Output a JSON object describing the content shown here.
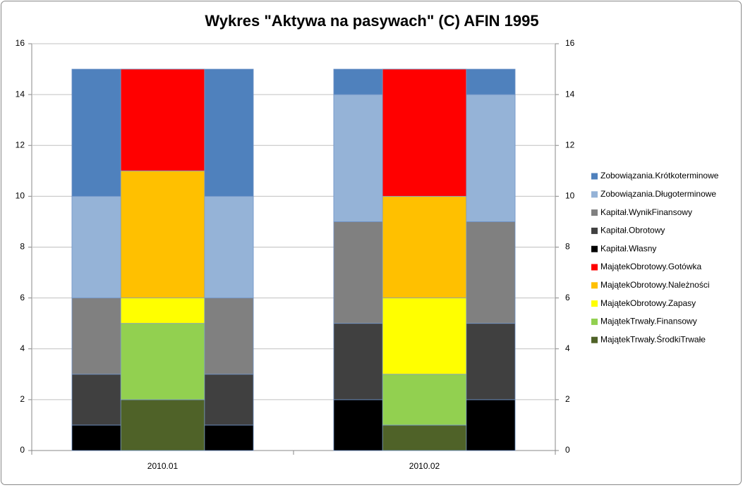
{
  "chart_data": {
    "type": "overlapped-stacked-bar",
    "title": "Wykres \"Aktywa na pasywach\" (C) AFIN 1995",
    "categories": [
      "2010.01",
      "2010.02"
    ],
    "ylim": [
      0,
      16
    ],
    "yticks": [
      0,
      2,
      4,
      6,
      8,
      10,
      12,
      14,
      16
    ],
    "y2lim": [
      0,
      16
    ],
    "y2ticks": [
      0,
      2,
      4,
      6,
      8,
      10,
      12,
      14,
      16
    ],
    "grid": true,
    "legend": "right",
    "series": [
      {
        "name": "Zobowiązania.Krótkoterminowe",
        "color": "#4F81BD",
        "values": [
          5,
          1
        ]
      },
      {
        "name": "Zobowiązania.Długoterminowe",
        "color": "#95B3D7",
        "values": [
          4,
          5
        ]
      },
      {
        "name": "Kapitał.WynikFinansowy",
        "color": "#808080",
        "values": [
          3,
          4
        ]
      },
      {
        "name": "Kapitał.Obrotowy",
        "color": "#404040",
        "values": [
          2,
          3
        ]
      },
      {
        "name": "Kapitał.Własny",
        "color": "#000000",
        "values": [
          1,
          2
        ]
      },
      {
        "name": "MajątekObrotowy.Gotówka",
        "color": "#FF0000",
        "values": [
          4,
          5
        ],
        "axis": "y2"
      },
      {
        "name": "MajątekObrotowy.Należności",
        "color": "#FFC000",
        "values": [
          5,
          4
        ],
        "axis": "y2"
      },
      {
        "name": "MajątekObrotowy.Zapasy",
        "color": "#FFFF00",
        "values": [
          1,
          3
        ],
        "axis": "y2"
      },
      {
        "name": "MajątekTrwały.Finansowy",
        "color": "#92D050",
        "values": [
          3,
          2
        ],
        "axis": "y2"
      },
      {
        "name": "MajątekTrwały.ŚrodkiTrwałe",
        "color": "#4F6228",
        "values": [
          2,
          1
        ],
        "axis": "y2"
      }
    ]
  }
}
